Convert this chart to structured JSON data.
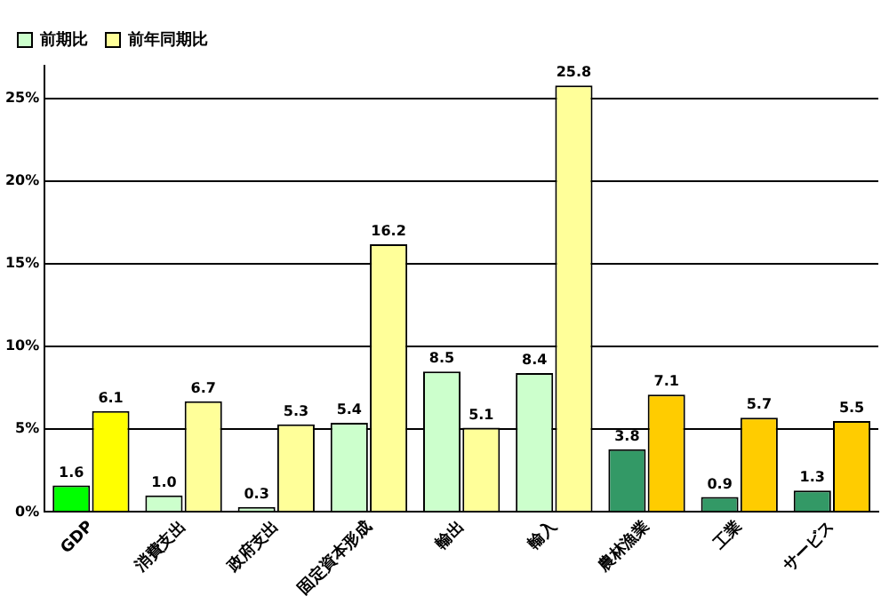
{
  "chart_data": {
    "type": "bar",
    "categories": [
      "GDP",
      "消費支出",
      "政府支出",
      "固定資本形成",
      "輸出",
      "輸入",
      "農林漁業",
      "工業",
      "サービス"
    ],
    "series": [
      {
        "name": "前期比",
        "color": "#ccffcc",
        "colors": [
          "#00ff00",
          "#ccffcc",
          "#ccffcc",
          "#ccffcc",
          "#ccffcc",
          "#ccffcc",
          "#339966",
          "#339966",
          "#339966"
        ],
        "values": [
          1.6,
          1.0,
          0.3,
          5.4,
          8.5,
          8.4,
          3.8,
          0.9,
          1.3
        ],
        "value_labels": [
          "1.6",
          "1.0",
          "0.3",
          "5.4",
          "8.5",
          "8.4",
          "3.8",
          "0.9",
          "1.3"
        ]
      },
      {
        "name": "前年同期比",
        "color": "#ffff99",
        "colors": [
          "#ffff00",
          "#ffff99",
          "#ffff99",
          "#ffff99",
          "#ffff99",
          "#ffff99",
          "#ffcc00",
          "#ffcc00",
          "#ffcc00"
        ],
        "values": [
          6.1,
          6.7,
          5.3,
          16.2,
          5.1,
          25.8,
          7.1,
          5.7,
          5.5
        ],
        "value_labels": [
          "6.1",
          "6.7",
          "5.3",
          "16.2",
          "5.1",
          "25.8",
          "7.1",
          "5.7",
          "5.5"
        ]
      }
    ],
    "ylim": [
      0,
      27
    ],
    "yticks": [
      {
        "value": 0,
        "label": "0%"
      },
      {
        "value": 5,
        "label": "5%"
      },
      {
        "value": 10,
        "label": "10%"
      },
      {
        "value": 15,
        "label": "15%"
      },
      {
        "value": 20,
        "label": "20%"
      },
      {
        "value": 25,
        "label": "25%"
      }
    ],
    "grid": "y",
    "legend": "top left"
  }
}
